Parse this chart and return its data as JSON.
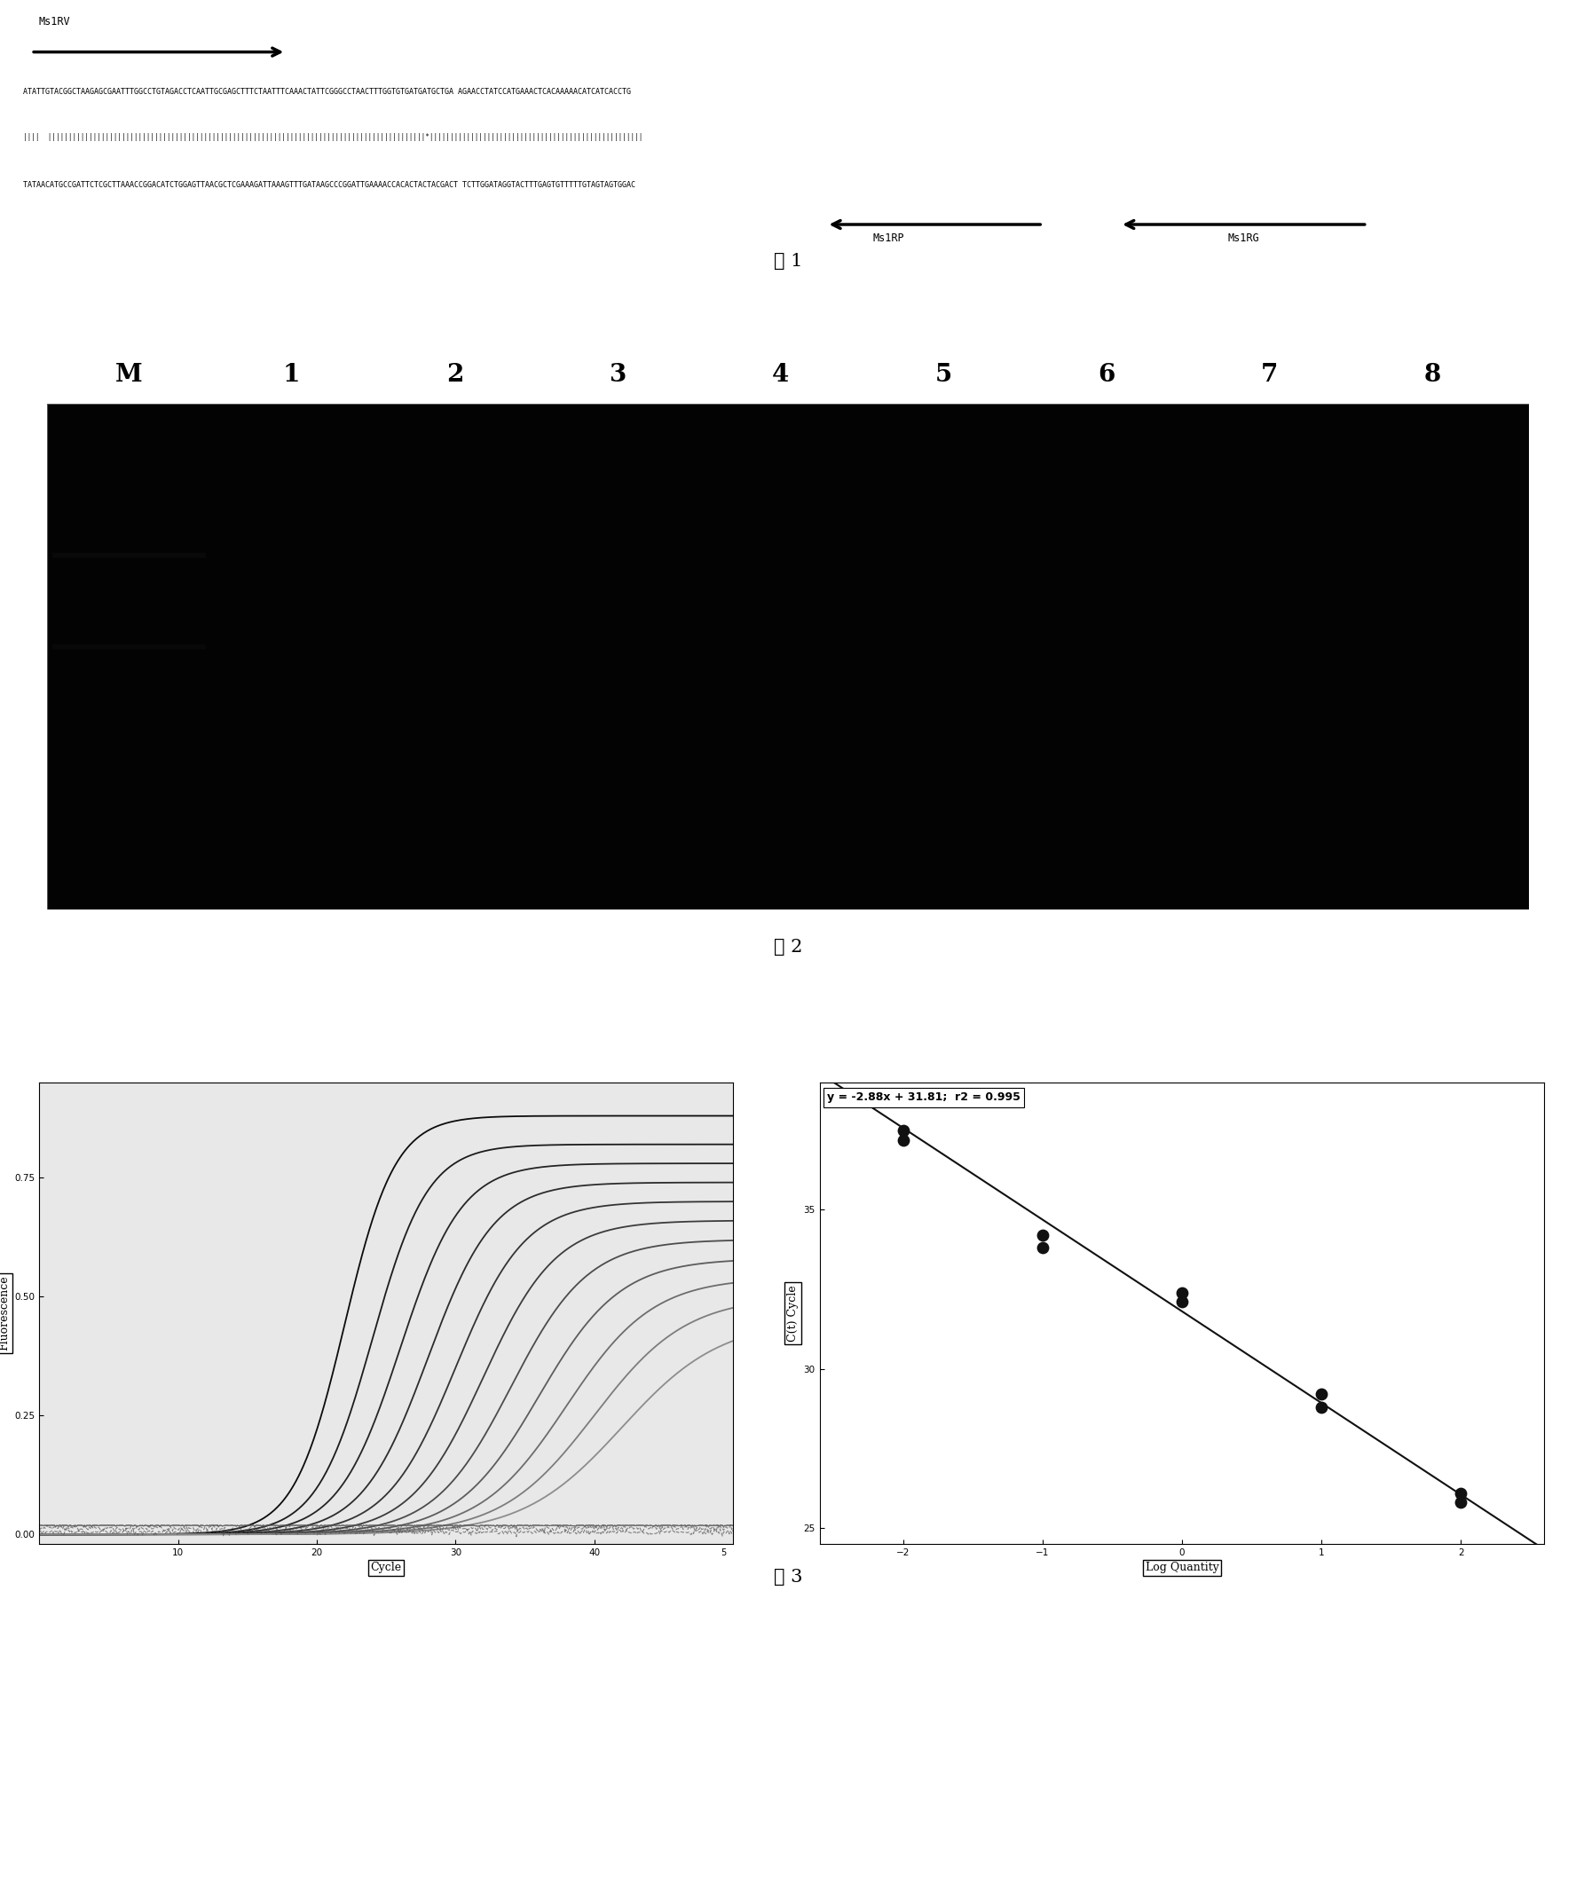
{
  "fig1_label": "图 1",
  "fig2_label": "图 2",
  "fig3_label": "图 3",
  "primer_rv_label": "Ms1RV",
  "primer_rp_label": "Ms1RP",
  "primer_rg_label": "Ms1RG",
  "gel_lanes": [
    "M",
    "1",
    "2",
    "3",
    "4",
    "5",
    "6",
    "7",
    "8"
  ],
  "gel_bg_color": "#030303",
  "pcr_curve_equation": "y = -2.88x + 31.81;  r2 = 0.995",
  "pcr_std_points_x": [
    -2.0,
    -2.0,
    -1.0,
    -1.0,
    0.0,
    0.0,
    1.0,
    1.0,
    2.0,
    2.0
  ],
  "pcr_std_points_y": [
    37.2,
    37.5,
    33.8,
    34.2,
    32.1,
    32.4,
    28.8,
    29.2,
    25.8,
    26.1
  ],
  "pcr_line_slope": -2.88,
  "pcr_line_intercept": 31.81,
  "bg_color": "#ffffff",
  "text_color": "#000000",
  "ct_values": [
    22,
    24,
    26,
    28,
    30,
    32,
    34,
    36,
    38,
    40,
    42
  ],
  "seq1": "ATATTGTACGGCTAAGAGCGAATTTGGCCTGTAGACCTCAATTGCGAGCTTTCTAATTTCAAACTATTCGGGCCTAACTTTGGTGTGATGATGCTGA AGAACCTATCCATGAAACTCACAAAAACATCATCACCTG",
  "seq_bars": "||||  ||||||||||||||||||||||||||||||||||||||||||||||||||||||||||||||||||||||||||||||||||||||||||||*||||||||||||||||||||||||||||||||||||||||||||||||||||",
  "seq2": "TATAACATGCCGATTCTCGCTTAAACCGGACATCTGGAGTTAACGCTCGAAAGATTAAAGTTTGATAAGCCCGGATTGAAAACCACACTACTACGACT TCTTGGATAGGTACTTTGAGTGTTTTTGTAGTAGTGGAC"
}
